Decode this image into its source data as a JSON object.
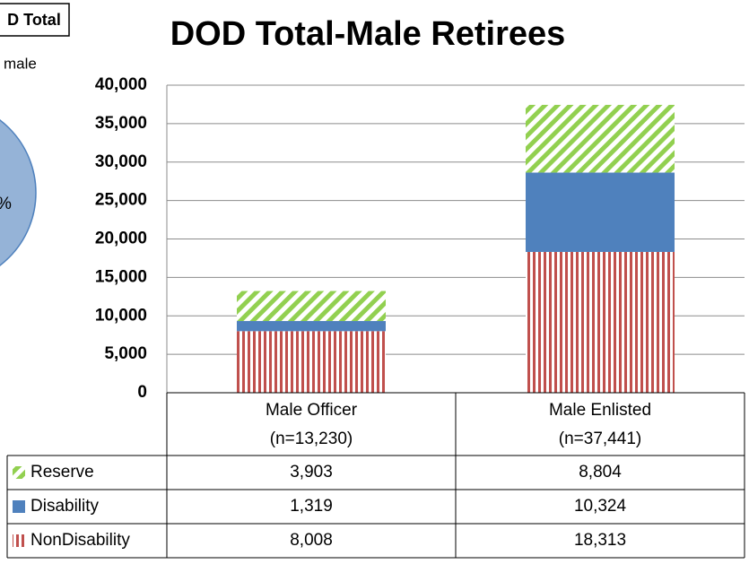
{
  "chart_data": {
    "type": "stacked_bar",
    "title": "DOD Total-Male Retirees",
    "categories": [
      "Male Officer",
      "Male Enlisted"
    ],
    "category_counts": [
      "(n=13,230)",
      "(n=37,441)"
    ],
    "series": [
      {
        "name": "Reserve",
        "color": "#92d050",
        "values": [
          3903,
          8804
        ],
        "value_labels": [
          "3,903",
          "8,804"
        ]
      },
      {
        "name": "Disability",
        "color": "#4f81bd",
        "values": [
          1319,
          10324
        ],
        "value_labels": [
          "1,319",
          "10,324"
        ]
      },
      {
        "name": "NonDisability",
        "color": "#c0504d",
        "values": [
          8008,
          18313
        ],
        "value_labels": [
          "8,008",
          "18,313"
        ]
      }
    ],
    "ylim": [
      0,
      40000
    ],
    "yticks": [
      0,
      {
        "value": 5000,
        "label": "5,000"
      },
      {
        "value": 10000,
        "label": "10,000"
      },
      {
        "value": 15000,
        "label": "15,000"
      },
      {
        "value": 20000,
        "label": "20,000"
      },
      {
        "value": 25000,
        "label": "25,000"
      },
      {
        "value": 30000,
        "label": "30,000"
      },
      {
        "value": 35000,
        "label": "35,000"
      },
      {
        "value": 40000,
        "label": "40,000"
      }
    ],
    "grid": true
  },
  "fragments": {
    "box": "D Total",
    "legend": "male",
    "pie_label": "%"
  }
}
